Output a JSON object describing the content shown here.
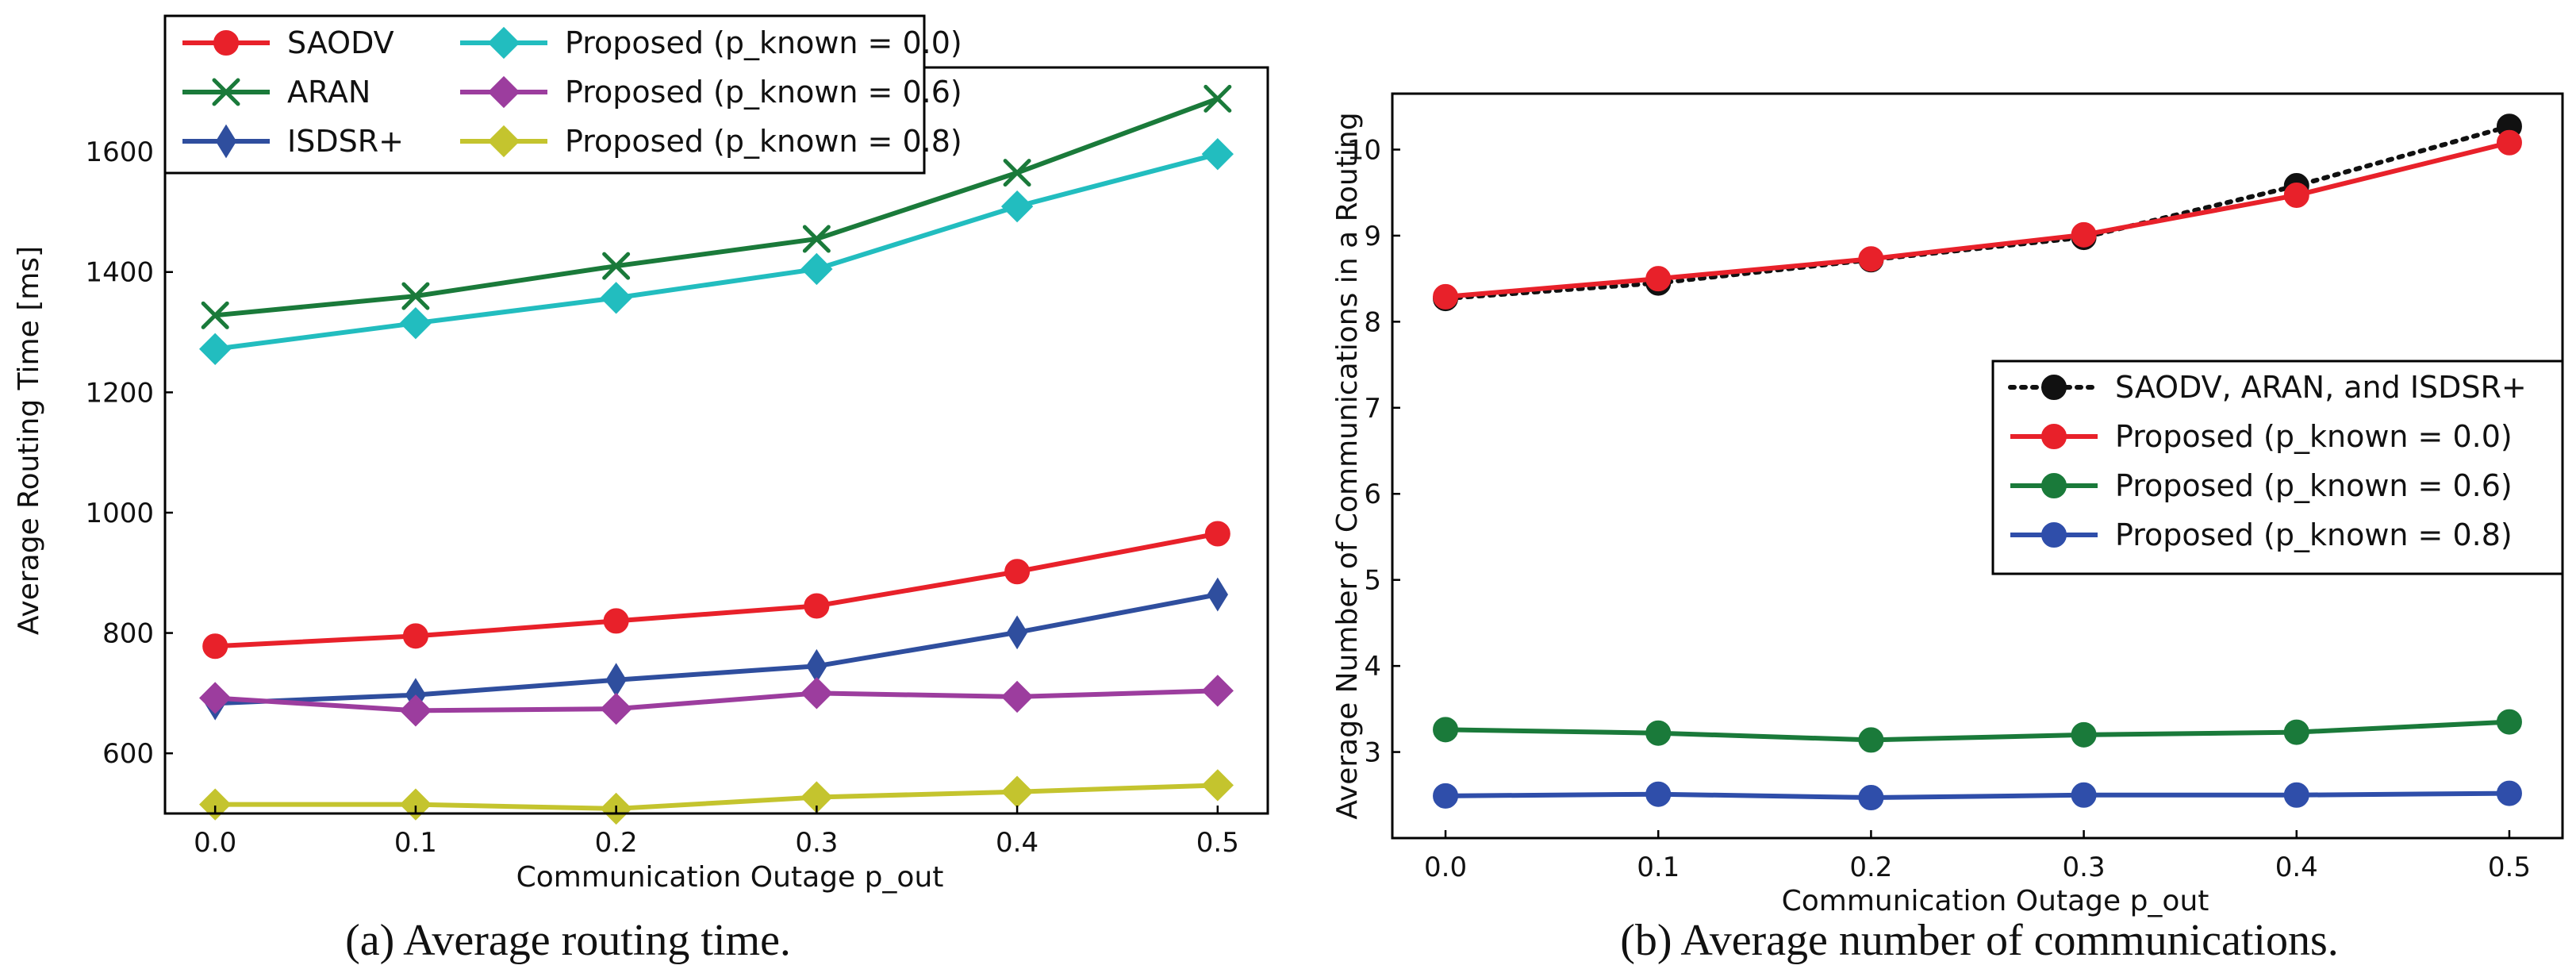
{
  "chart_data": [
    {
      "type": "line",
      "title": "",
      "caption": "(a) Average routing time.",
      "xlabel": "Communication Outage p_out",
      "ylabel": "Average Routing Time [ms]",
      "x": [
        0.0,
        0.1,
        0.2,
        0.3,
        0.4,
        0.5
      ],
      "xticks": [
        "0.0",
        "0.1",
        "0.2",
        "0.3",
        "0.4",
        "0.5"
      ],
      "xlim": [
        -0.025,
        0.525
      ],
      "ylim": [
        500,
        1740
      ],
      "yticks": [
        "600",
        "800",
        "1000",
        "1200",
        "1400",
        "1600"
      ],
      "legend_position": "upper-left",
      "series": [
        {
          "name": "SAODV",
          "color": "#e8212a",
          "marker": "circle",
          "values": [
            778,
            795,
            820,
            845,
            902,
            965
          ]
        },
        {
          "name": "ARAN",
          "color": "#1a7a3a",
          "marker": "x",
          "values": [
            1328,
            1360,
            1410,
            1455,
            1565,
            1688
          ]
        },
        {
          "name": "ISDSR+",
          "color": "#2f4e9e",
          "marker": "thin-diamond",
          "values": [
            683,
            697,
            722,
            745,
            801,
            864
          ]
        },
        {
          "name": "Proposed (p_known = 0.0)",
          "color": "#22bdbf",
          "marker": "diamond",
          "values": [
            1272,
            1315,
            1357,
            1405,
            1509,
            1596
          ]
        },
        {
          "name": "Proposed (p_known = 0.6)",
          "color": "#9c3d9e",
          "marker": "diamond",
          "values": [
            692,
            671,
            674,
            700,
            694,
            704
          ]
        },
        {
          "name": "Proposed (p_known = 0.8)",
          "color": "#c4c42e",
          "marker": "diamond",
          "values": [
            515,
            515,
            508,
            527,
            536,
            547
          ]
        }
      ]
    },
    {
      "type": "line",
      "title": "",
      "caption": "(b) Average number of communications.",
      "xlabel": "Communication Outage p_out",
      "ylabel": "Average Number of Communications in a Routing",
      "x": [
        0.0,
        0.1,
        0.2,
        0.3,
        0.4,
        0.5
      ],
      "xticks": [
        "0.0",
        "0.1",
        "0.2",
        "0.3",
        "0.4",
        "0.5"
      ],
      "xlim": [
        -0.025,
        0.525
      ],
      "ylim": [
        2.0,
        10.65
      ],
      "yticks": [
        "3",
        "4",
        "5",
        "6",
        "7",
        "8",
        "9",
        "10"
      ],
      "legend_position": "center-right",
      "series": [
        {
          "name": "SAODV, ARAN, and ISDSR+",
          "color": "#111111",
          "marker": "circle",
          "style": "dotted",
          "values": [
            8.27,
            8.45,
            8.72,
            8.98,
            9.58,
            10.27
          ]
        },
        {
          "name": "Proposed (p_known = 0.0)",
          "color": "#e8212a",
          "marker": "circle",
          "values": [
            8.29,
            8.5,
            8.73,
            9.01,
            9.47,
            10.08
          ]
        },
        {
          "name": "Proposed (p_known = 0.6)",
          "color": "#1a7a3a",
          "marker": "circle",
          "values": [
            3.26,
            3.22,
            3.14,
            3.2,
            3.23,
            3.35
          ]
        },
        {
          "name": "Proposed (p_known = 0.8)",
          "color": "#2f4eaa",
          "marker": "circle",
          "values": [
            2.49,
            2.51,
            2.47,
            2.5,
            2.5,
            2.52
          ]
        }
      ]
    }
  ]
}
